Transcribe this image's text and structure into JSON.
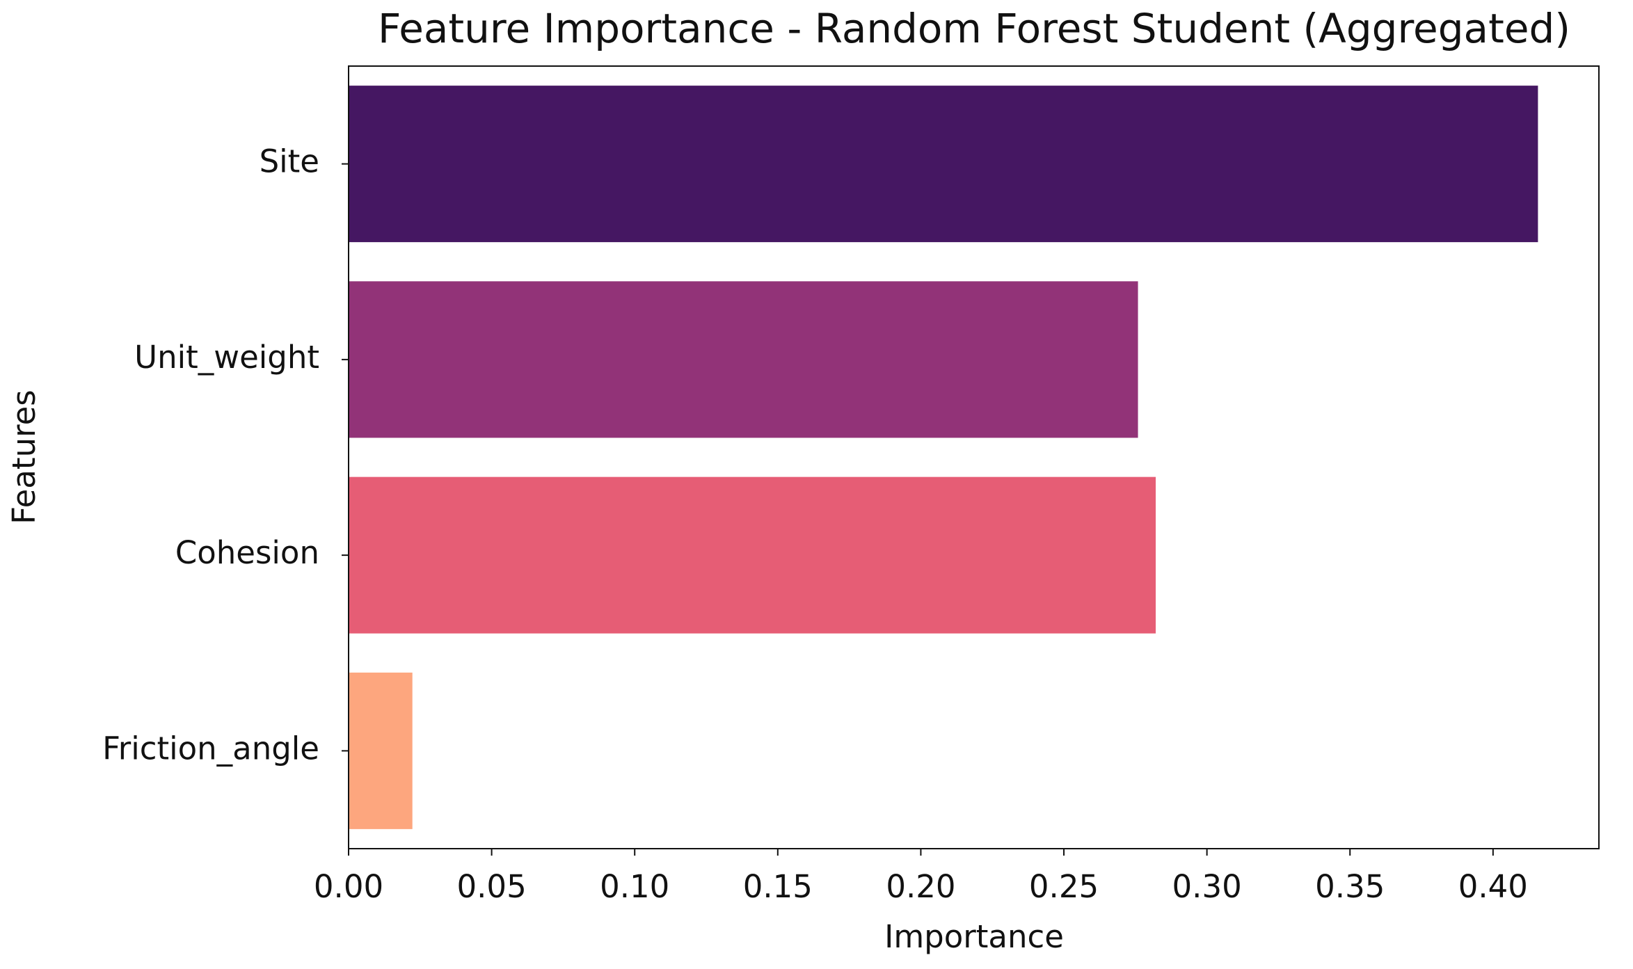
{
  "chart_data": {
    "type": "barh",
    "title": "Feature Importance - Random Forest Student (Aggregated)",
    "xlabel": "Importance",
    "ylabel": "Features",
    "categories": [
      "Site",
      "Unit_weight",
      "Cohesion",
      "Friction_angle"
    ],
    "values": [
      0.4157,
      0.2759,
      0.2821,
      0.0223
    ],
    "colors": [
      "#451762",
      "#923378",
      "#e65d75",
      "#fda67e"
    ],
    "xlim": [
      0,
      0.437
    ],
    "xticks": [
      {
        "value": 0,
        "label": "0.00"
      },
      {
        "value": 0.05,
        "label": "0.05"
      },
      {
        "value": 0.1,
        "label": "0.10"
      },
      {
        "value": 0.15,
        "label": "0.15"
      },
      {
        "value": 0.2,
        "label": "0.20"
      },
      {
        "value": 0.25,
        "label": "0.25"
      },
      {
        "value": 0.3,
        "label": "0.30"
      },
      {
        "value": 0.35,
        "label": "0.35"
      },
      {
        "value": 0.4,
        "label": "0.40"
      }
    ],
    "grid": false
  }
}
